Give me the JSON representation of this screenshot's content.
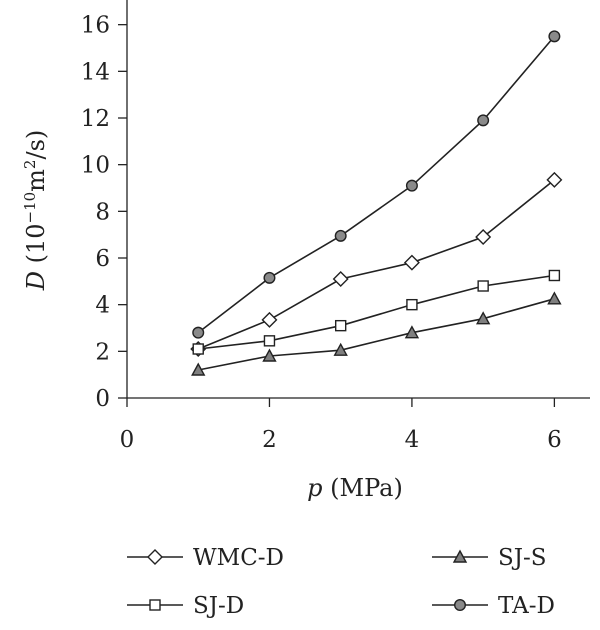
{
  "chart_data": {
    "type": "line",
    "xlabel": {
      "var": "p",
      "unit": " (MPa)"
    },
    "ylabel": {
      "var": "D",
      "unit_pre": " (10",
      "unit_exp": "−10",
      "unit_mid": "m",
      "unit_exp2": "2",
      "unit_post": "/s)"
    },
    "xlim": [
      0,
      6.5
    ],
    "ylim": [
      0,
      16.8
    ],
    "xticks": [
      "0",
      "2",
      "4",
      "6"
    ],
    "yticks": [
      "0",
      "2",
      "4",
      "6",
      "8",
      "10",
      "12",
      "14",
      "16"
    ],
    "x": [
      1,
      2,
      3,
      4,
      5,
      6
    ],
    "series": [
      {
        "name": "WMC-D",
        "marker": "diamond",
        "values": [
          2.1,
          3.35,
          5.1,
          5.8,
          6.9,
          9.35
        ]
      },
      {
        "name": "SJ-S",
        "marker": "triangle",
        "values": [
          1.2,
          1.8,
          2.05,
          2.8,
          3.4,
          4.25
        ]
      },
      {
        "name": "SJ-D",
        "marker": "square",
        "values": [
          2.1,
          2.45,
          3.1,
          4.0,
          4.8,
          5.25
        ]
      },
      {
        "name": "TA-D",
        "marker": "circle",
        "values": [
          2.8,
          5.15,
          6.95,
          9.1,
          11.9,
          15.5
        ]
      }
    ],
    "grid": false,
    "legend_position": "bottom"
  }
}
